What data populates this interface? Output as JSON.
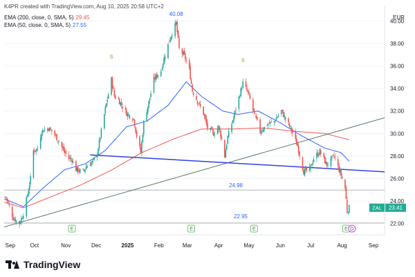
{
  "header": {
    "created": "K4PR created with TradingView.com, Aug 10, 2025 20:58 UTC+2",
    "ema200_label": "EMA (200, close, 0, SMA, 5)",
    "ema200_value": "29.45",
    "ema50_label": "EMA (50, close, 0, SMA, 5)",
    "ema50_value": "27.55"
  },
  "footer": {
    "brand": "TradingView"
  },
  "colors": {
    "up": "#26a69a",
    "down": "#ef5350",
    "ema200": "#ef5350",
    "ema50": "#2962ff",
    "trend_blue": "#2f3fe0",
    "trend_green": "#4a6b55",
    "price_badge": "#22ab94"
  },
  "chart_data": {
    "type": "candlestick",
    "currency": "EUR",
    "ylim": [
      21.0,
      41.0
    ],
    "yticks": [
      "22.00",
      "24.00",
      "26.00",
      "28.00",
      "30.00",
      "32.00",
      "34.00",
      "36.00",
      "38.00",
      "40.00"
    ],
    "xticks": [
      "Sep",
      "Oct",
      "Nov",
      "Dec",
      "2025",
      "Feb",
      "Mar",
      "Apr",
      "May",
      "Jun",
      "Jul",
      "Aug",
      "Sep"
    ],
    "x_range": [
      "2024-09-01",
      "2025-09-12"
    ],
    "last_price_label": "ZAL",
    "last_price": "23.41",
    "annotations": {
      "high": {
        "text": "40.08",
        "date": "2025-02-18",
        "value": 40.08
      },
      "low": {
        "text": "22.95",
        "date": "2025-08-02",
        "value": 22.95
      },
      "level": {
        "text": "24.98",
        "value": 24.98
      }
    },
    "horizontal_levels": [
      24.98,
      22.05
    ],
    "split_markers": [
      {
        "text": "S",
        "date": "2024-12-16"
      },
      {
        "text": "S",
        "date": "2025-04-25"
      }
    ],
    "earnings_markers": [
      {
        "text": "E",
        "date": "2024-11-07"
      },
      {
        "text": "E",
        "date": "2025-03-05"
      },
      {
        "text": "E",
        "date": "2025-05-06"
      },
      {
        "text": "E",
        "date": "2025-08-05"
      }
    ],
    "dividend_markers": [
      {
        "text": "D",
        "date": "2025-08-08"
      }
    ],
    "trendlines": [
      {
        "name": "support-resistance",
        "from": {
          "date": "2024-11-25",
          "value": 28.1
        },
        "to": {
          "date": "2025-09-12",
          "value": 26.6
        }
      },
      {
        "name": "rising",
        "from": {
          "date": "2024-09-01",
          "value": 21.7
        },
        "to": {
          "date": "2025-09-12",
          "value": 31.4
        }
      }
    ],
    "price_anchors": [
      [
        "2024-09-01",
        24.4
      ],
      [
        "2024-09-03",
        24.3
      ],
      [
        "2024-09-10",
        22.5
      ],
      [
        "2024-09-16",
        22.0
      ],
      [
        "2024-09-20",
        22.9
      ],
      [
        "2024-09-24",
        24.5
      ],
      [
        "2024-09-27",
        26.0
      ],
      [
        "2024-09-30",
        28.5
      ],
      [
        "2024-10-04",
        28.6
      ],
      [
        "2024-10-08",
        30.2
      ],
      [
        "2024-10-15",
        30.5
      ],
      [
        "2024-10-21",
        29.9
      ],
      [
        "2024-10-25",
        29.3
      ],
      [
        "2024-10-31",
        28.3
      ],
      [
        "2024-11-04",
        27.8
      ],
      [
        "2024-11-07",
        27.7
      ],
      [
        "2024-11-11",
        26.8
      ],
      [
        "2024-11-18",
        26.6
      ],
      [
        "2024-11-22",
        27.2
      ],
      [
        "2024-11-28",
        27.5
      ],
      [
        "2024-12-02",
        28.3
      ],
      [
        "2024-12-06",
        30.2
      ],
      [
        "2024-12-10",
        32.2
      ],
      [
        "2024-12-16",
        34.8
      ],
      [
        "2024-12-19",
        33.3
      ],
      [
        "2024-12-23",
        33.0
      ],
      [
        "2024-12-27",
        32.4
      ],
      [
        "2024-12-31",
        31.8
      ],
      [
        "2025-01-07",
        31.3
      ],
      [
        "2025-01-10",
        29.8
      ],
      [
        "2025-01-14",
        28.3
      ],
      [
        "2025-01-17",
        31.0
      ],
      [
        "2025-01-22",
        32.8
      ],
      [
        "2025-01-27",
        34.8
      ],
      [
        "2025-02-03",
        35.6
      ],
      [
        "2025-02-07",
        37.0
      ],
      [
        "2025-02-12",
        38.5
      ],
      [
        "2025-02-18",
        39.8
      ],
      [
        "2025-02-21",
        37.5
      ],
      [
        "2025-02-26",
        36.9
      ],
      [
        "2025-03-03",
        35.7
      ],
      [
        "2025-03-06",
        33.8
      ],
      [
        "2025-03-12",
        32.7
      ],
      [
        "2025-03-17",
        31.8
      ],
      [
        "2025-03-21",
        30.5
      ],
      [
        "2025-03-27",
        30.0
      ],
      [
        "2025-04-01",
        30.6
      ],
      [
        "2025-04-04",
        29.5
      ],
      [
        "2025-04-07",
        28.0
      ],
      [
        "2025-04-10",
        29.7
      ],
      [
        "2025-04-15",
        31.2
      ],
      [
        "2025-04-21",
        33.2
      ],
      [
        "2025-04-25",
        34.5
      ],
      [
        "2025-04-30",
        33.6
      ],
      [
        "2025-05-06",
        31.8
      ],
      [
        "2025-05-12",
        30.2
      ],
      [
        "2025-05-19",
        30.8
      ],
      [
        "2025-05-26",
        31.1
      ],
      [
        "2025-06-02",
        32.0
      ],
      [
        "2025-06-06",
        31.3
      ],
      [
        "2025-06-12",
        30.3
      ],
      [
        "2025-06-18",
        28.9
      ],
      [
        "2025-06-24",
        26.6
      ],
      [
        "2025-06-30",
        26.8
      ],
      [
        "2025-07-04",
        27.8
      ],
      [
        "2025-07-10",
        28.4
      ],
      [
        "2025-07-17",
        27.2
      ],
      [
        "2025-07-24",
        28.0
      ],
      [
        "2025-07-31",
        26.3
      ],
      [
        "2025-08-04",
        25.2
      ],
      [
        "2025-08-06",
        23.1
      ],
      [
        "2025-08-08",
        23.41
      ]
    ],
    "ema50_anchors": [
      [
        "2024-09-01",
        24.2
      ],
      [
        "2024-09-20",
        23.5
      ],
      [
        "2024-10-10",
        25.2
      ],
      [
        "2024-10-31",
        26.8
      ],
      [
        "2024-11-20",
        27.3
      ],
      [
        "2024-12-10",
        28.5
      ],
      [
        "2024-12-31",
        30.6
      ],
      [
        "2025-01-20",
        31.1
      ],
      [
        "2025-02-10",
        32.5
      ],
      [
        "2025-02-28",
        34.6
      ],
      [
        "2025-03-15",
        33.3
      ],
      [
        "2025-04-05",
        32.0
      ],
      [
        "2025-04-20",
        31.7
      ],
      [
        "2025-05-10",
        32.0
      ],
      [
        "2025-05-31",
        31.0
      ],
      [
        "2025-06-20",
        29.9
      ],
      [
        "2025-07-15",
        28.7
      ],
      [
        "2025-07-31",
        28.3
      ],
      [
        "2025-08-08",
        27.55
      ]
    ],
    "ema200_anchors": [
      [
        "2024-09-01",
        23.9
      ],
      [
        "2024-09-20",
        23.4
      ],
      [
        "2024-10-15",
        24.3
      ],
      [
        "2024-11-15",
        25.4
      ],
      [
        "2024-12-15",
        26.7
      ],
      [
        "2025-01-15",
        28.3
      ],
      [
        "2025-02-15",
        29.5
      ],
      [
        "2025-03-15",
        30.4
      ],
      [
        "2025-04-15",
        30.4
      ],
      [
        "2025-05-15",
        30.5
      ],
      [
        "2025-06-15",
        30.2
      ],
      [
        "2025-07-15",
        30.0
      ],
      [
        "2025-08-08",
        29.45
      ]
    ]
  }
}
